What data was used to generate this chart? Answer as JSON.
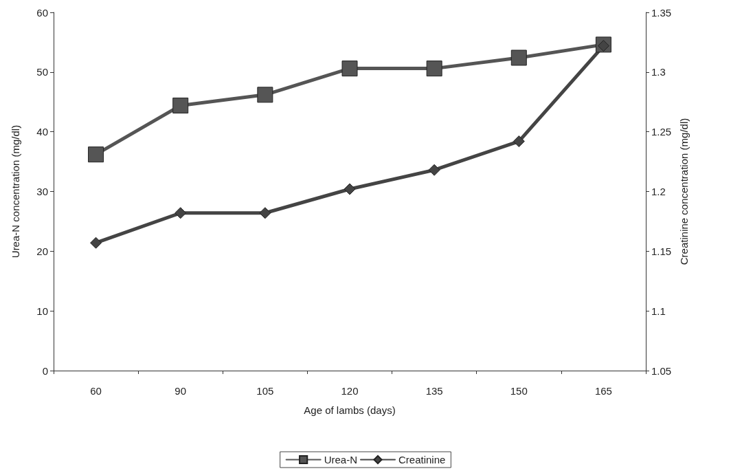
{
  "chart_data": {
    "type": "line",
    "xlabel": "Age of lambs (days)",
    "ylabel": "Urea-N concentration (mg/dl)",
    "y2label": "Creatinine concentration (mg/dl)",
    "categories": [
      "60",
      "90",
      "105",
      "120",
      "135",
      "150",
      "165"
    ],
    "series": [
      {
        "name": "Urea-N",
        "color": "#555555",
        "marker": "square",
        "values": [
          36.2,
          44.4,
          46.2,
          50.6,
          50.6,
          52.4,
          54.6
        ]
      },
      {
        "name": "Creatinine",
        "color": "#444444",
        "marker": "diamond",
        "axis": "y2",
        "values": [
          1.157,
          1.182,
          1.182,
          1.202,
          1.218,
          1.242,
          1.322
        ]
      }
    ],
    "ylim": [
      0,
      60
    ],
    "yticks": [
      0,
      10,
      20,
      30,
      40,
      50,
      60
    ],
    "y2lim": [
      1.05,
      1.35
    ],
    "y2ticks": [
      1.05,
      1.1,
      1.15,
      1.2,
      1.25,
      1.3,
      1.35
    ],
    "grid": false,
    "legend": "bottom",
    "line_style": "solid"
  }
}
